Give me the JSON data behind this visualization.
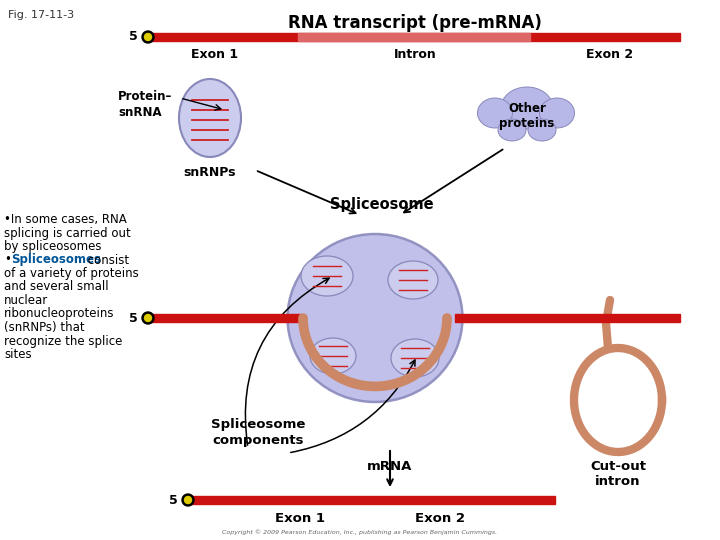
{
  "fig_label": "Fig. 17-11-3",
  "title": "RNA transcript (pre-mRNA)",
  "background_color": "#ffffff",
  "rna_bar_color": "#cc1111",
  "intron_bar_color": "#dd6666",
  "five_prime_dot_color": "#ddcc00",
  "exon1_label": "Exon 1",
  "intron_label": "Intron",
  "exon2_label": "Exon 2",
  "protein_snrna_label": "Protein–\nsnRNA",
  "snrnps_label": "snRNPs",
  "other_proteins_label": "Other\nproteins",
  "spliceosome_label": "Spliceosome",
  "spliceosome_components_label": "Spliceosome\ncomponents",
  "mrna_label": "mRNA",
  "cutout_intron_label": "Cut-out\nintron",
  "exon1_bottom_label": "Exon 1",
  "exon2_bottom_label": "Exon 2",
  "blob_color": "#b8b8e8",
  "blob_edge_color": "#8888bb",
  "snrnp_color": "#ccccee",
  "loop_color": "#cc8866",
  "left_text_color": "#000000",
  "spliceosomes_bold_color": "#005599",
  "copyright_text": "Copyright © 2009 Pearson Education, Inc., publishing as Pearson Benjamin Cummings."
}
